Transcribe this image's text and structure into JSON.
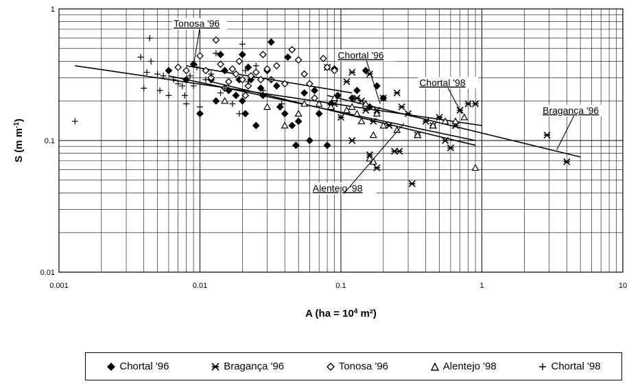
{
  "chart_data": {
    "type": "scatter",
    "title": "",
    "xlabel_main": "A (ha = 10",
    "xlabel_sup": "4",
    "xlabel_tail": " m²)",
    "ylabel_main": "S (m m",
    "ylabel_sup": "-1",
    "ylabel_tail": ")",
    "x_scale": "log",
    "y_scale": "log",
    "xlim": [
      0.001,
      10
    ],
    "ylim": [
      0.01,
      1
    ],
    "x_ticks": [
      "0.001",
      "0.01",
      "0.1",
      "1",
      "10"
    ],
    "y_ticks": [
      "0.01",
      "0.1",
      "1"
    ],
    "grid": true,
    "legend_position": "bottom",
    "series": [
      {
        "name": "Chortal '96",
        "marker": "diamond-filled",
        "points": [
          [
            0.006,
            0.34
          ],
          [
            0.008,
            0.29
          ],
          [
            0.009,
            0.38
          ],
          [
            0.01,
            0.16
          ],
          [
            0.012,
            0.29
          ],
          [
            0.013,
            0.2
          ],
          [
            0.014,
            0.45
          ],
          [
            0.015,
            0.34
          ],
          [
            0.016,
            0.24
          ],
          [
            0.018,
            0.22
          ],
          [
            0.019,
            0.29
          ],
          [
            0.02,
            0.45
          ],
          [
            0.02,
            0.2
          ],
          [
            0.021,
            0.16
          ],
          [
            0.022,
            0.36
          ],
          [
            0.023,
            0.29
          ],
          [
            0.025,
            0.13
          ],
          [
            0.027,
            0.25
          ],
          [
            0.028,
            0.22
          ],
          [
            0.03,
            0.34
          ],
          [
            0.032,
            0.56
          ],
          [
            0.035,
            0.26
          ],
          [
            0.037,
            0.18
          ],
          [
            0.04,
            0.16
          ],
          [
            0.042,
            0.43
          ],
          [
            0.045,
            0.13
          ],
          [
            0.048,
            0.092
          ],
          [
            0.05,
            0.14
          ],
          [
            0.055,
            0.23
          ],
          [
            0.06,
            0.1
          ],
          [
            0.065,
            0.24
          ],
          [
            0.07,
            0.16
          ],
          [
            0.08,
            0.092
          ],
          [
            0.085,
            0.19
          ],
          [
            0.09,
            0.35
          ],
          [
            0.095,
            0.22
          ],
          [
            0.12,
            0.21
          ],
          [
            0.13,
            0.24
          ],
          [
            0.15,
            0.34
          ],
          [
            0.16,
            0.18
          ],
          [
            0.18,
            0.26
          ],
          [
            0.2,
            0.21
          ]
        ]
      },
      {
        "name": "Bragança '96",
        "marker": "x-star",
        "points": [
          [
            0.08,
            0.36
          ],
          [
            0.09,
            0.19
          ],
          [
            0.1,
            0.15
          ],
          [
            0.11,
            0.28
          ],
          [
            0.12,
            0.33
          ],
          [
            0.13,
            0.21
          ],
          [
            0.14,
            0.2
          ],
          [
            0.15,
            0.17
          ],
          [
            0.16,
            0.32
          ],
          [
            0.17,
            0.14
          ],
          [
            0.18,
            0.17
          ],
          [
            0.2,
            0.21
          ],
          [
            0.22,
            0.13
          ],
          [
            0.24,
            0.083
          ],
          [
            0.25,
            0.23
          ],
          [
            0.27,
            0.18
          ],
          [
            0.3,
            0.16
          ],
          [
            0.32,
            0.047
          ],
          [
            0.35,
            0.11
          ],
          [
            0.4,
            0.14
          ],
          [
            0.45,
            0.13
          ],
          [
            0.5,
            0.15
          ],
          [
            0.55,
            0.1
          ],
          [
            0.6,
            0.088
          ],
          [
            0.65,
            0.13
          ],
          [
            0.7,
            0.17
          ],
          [
            0.8,
            0.19
          ],
          [
            0.9,
            0.19
          ],
          [
            0.12,
            0.1
          ],
          [
            0.16,
            0.078
          ],
          [
            0.18,
            0.062
          ],
          [
            0.26,
            0.083
          ],
          [
            2.9,
            0.11
          ],
          [
            4.0,
            0.069
          ]
        ]
      },
      {
        "name": "Tonosa '96",
        "marker": "diamond-open",
        "points": [
          [
            0.007,
            0.36
          ],
          [
            0.008,
            0.34
          ],
          [
            0.01,
            0.44
          ],
          [
            0.011,
            0.34
          ],
          [
            0.012,
            0.3
          ],
          [
            0.013,
            0.58
          ],
          [
            0.014,
            0.38
          ],
          [
            0.015,
            0.25
          ],
          [
            0.016,
            0.28
          ],
          [
            0.017,
            0.35
          ],
          [
            0.018,
            0.32
          ],
          [
            0.019,
            0.4
          ],
          [
            0.02,
            0.29
          ],
          [
            0.021,
            0.22
          ],
          [
            0.022,
            0.26
          ],
          [
            0.023,
            0.31
          ],
          [
            0.025,
            0.33
          ],
          [
            0.027,
            0.29
          ],
          [
            0.028,
            0.45
          ],
          [
            0.03,
            0.35
          ],
          [
            0.032,
            0.29
          ],
          [
            0.035,
            0.37
          ],
          [
            0.04,
            0.27
          ],
          [
            0.045,
            0.49
          ],
          [
            0.05,
            0.41
          ],
          [
            0.055,
            0.32
          ],
          [
            0.06,
            0.27
          ],
          [
            0.065,
            0.21
          ],
          [
            0.075,
            0.42
          ],
          [
            0.08,
            0.36
          ],
          [
            0.09,
            0.34
          ]
        ]
      },
      {
        "name": "Alentejo '98",
        "marker": "triangle-open",
        "points": [
          [
            0.015,
            0.2
          ],
          [
            0.03,
            0.18
          ],
          [
            0.04,
            0.13
          ],
          [
            0.05,
            0.16
          ],
          [
            0.055,
            0.19
          ],
          [
            0.07,
            0.19
          ],
          [
            0.085,
            0.18
          ],
          [
            0.09,
            0.21
          ],
          [
            0.11,
            0.17
          ],
          [
            0.12,
            0.18
          ],
          [
            0.13,
            0.16
          ],
          [
            0.14,
            0.14
          ],
          [
            0.15,
            0.19
          ],
          [
            0.16,
            0.073
          ],
          [
            0.17,
            0.069
          ],
          [
            0.18,
            0.16
          ],
          [
            0.2,
            0.13
          ],
          [
            0.25,
            0.12
          ],
          [
            0.35,
            0.11
          ],
          [
            0.45,
            0.13
          ],
          [
            0.55,
            0.14
          ],
          [
            0.65,
            0.14
          ],
          [
            0.75,
            0.15
          ],
          [
            0.9,
            0.062
          ],
          [
            0.17,
            0.11
          ]
        ]
      },
      {
        "name": "Chortal '98",
        "marker": "plus",
        "points": [
          [
            0.0013,
            0.14
          ],
          [
            0.0038,
            0.43
          ],
          [
            0.004,
            0.25
          ],
          [
            0.0042,
            0.33
          ],
          [
            0.0044,
            0.6
          ],
          [
            0.0045,
            0.4
          ],
          [
            0.005,
            0.32
          ],
          [
            0.0052,
            0.24
          ],
          [
            0.0055,
            0.31
          ],
          [
            0.006,
            0.22
          ],
          [
            0.0065,
            0.29
          ],
          [
            0.007,
            0.27
          ],
          [
            0.0075,
            0.26
          ],
          [
            0.0078,
            0.22
          ],
          [
            0.008,
            0.19
          ],
          [
            0.0085,
            0.31
          ],
          [
            0.009,
            0.26
          ],
          [
            0.0095,
            0.36
          ],
          [
            0.01,
            0.18
          ],
          [
            0.011,
            0.29
          ],
          [
            0.012,
            0.32
          ],
          [
            0.013,
            0.46
          ],
          [
            0.014,
            0.23
          ],
          [
            0.015,
            0.25
          ],
          [
            0.017,
            0.19
          ],
          [
            0.018,
            0.22
          ],
          [
            0.019,
            0.16
          ],
          [
            0.02,
            0.54
          ],
          [
            0.021,
            0.34
          ],
          [
            0.022,
            0.28
          ],
          [
            0.025,
            0.37
          ],
          [
            0.028,
            0.24
          ],
          [
            0.032,
            0.29
          ],
          [
            0.038,
            0.19
          ]
        ]
      }
    ],
    "trendlines": [
      {
        "name": "Tonosa '96",
        "x": [
          0.008,
          0.12
        ],
        "y": [
          0.37,
          0.23
        ]
      },
      {
        "name": "Chortal '96",
        "x": [
          0.006,
          0.9
        ],
        "y": [
          0.31,
          0.1
        ]
      },
      {
        "name": "Chortal '98",
        "x": [
          0.0013,
          1.0
        ],
        "y": [
          0.37,
          0.13
        ]
      },
      {
        "name": "Alentejo '98",
        "x": [
          0.012,
          0.9
        ],
        "y": [
          0.28,
          0.092
        ]
      },
      {
        "name": "Bragança '96",
        "x": [
          0.08,
          5.0
        ],
        "y": [
          0.22,
          0.075
        ]
      }
    ],
    "annotations": [
      {
        "text": "Tonosa '96",
        "x": 0.0065,
        "y": 0.73,
        "pointer_x": 0.009,
        "pointer_y": 0.37
      },
      {
        "text": "Chortal '96",
        "x": 0.095,
        "y": 0.42,
        "pointer_x": 0.19,
        "pointer_y": 0.19
      },
      {
        "text": "Chortal '98",
        "x": 0.36,
        "y": 0.26,
        "pointer_x": 0.72,
        "pointer_y": 0.16
      },
      {
        "text": "Alentejo '98",
        "x": 0.063,
        "y": 0.041,
        "pointer_x": 0.28,
        "pointer_y": 0.135
      },
      {
        "text": "Bragança '96",
        "x": 2.7,
        "y": 0.16,
        "pointer_x": 3.4,
        "pointer_y": 0.085
      }
    ]
  }
}
